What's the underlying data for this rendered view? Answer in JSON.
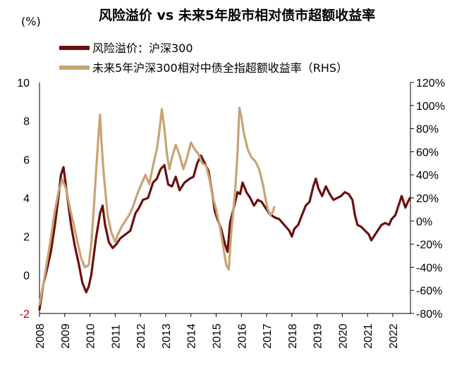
{
  "chart_data": {
    "type": "line",
    "title": "风险溢价 vs 未来5年股市相对债市超额收益率",
    "left_axis_unit": "(%)",
    "ylim_left": [
      -2,
      10
    ],
    "ylim_right": [
      -80,
      120
    ],
    "left_ticks": [
      "10",
      "8",
      "6",
      "4",
      "2",
      "0",
      "-2"
    ],
    "right_ticks": [
      "120%",
      "100%",
      "80%",
      "60%",
      "40%",
      "20%",
      "0%",
      "-20%",
      "-40%",
      "-60%",
      "-80%"
    ],
    "x_ticks": [
      "2008",
      "2009",
      "2010",
      "2011",
      "2012",
      "2013",
      "2014",
      "2015",
      "2016",
      "2017",
      "2018",
      "2019",
      "2020",
      "2021",
      "2022"
    ],
    "xlim": [
      2008.0,
      2022.7
    ],
    "series": [
      {
        "name": "风险溢价：沪深300",
        "axis": "left",
        "color": "#6b0f0f",
        "points": [
          [
            2008.0,
            -1.8
          ],
          [
            2008.15,
            -0.5
          ],
          [
            2008.3,
            0.3
          ],
          [
            2008.45,
            1.2
          ],
          [
            2008.6,
            2.5
          ],
          [
            2008.75,
            4.0
          ],
          [
            2008.85,
            5.2
          ],
          [
            2008.95,
            5.6
          ],
          [
            2009.05,
            4.6
          ],
          [
            2009.15,
            3.6
          ],
          [
            2009.25,
            2.6
          ],
          [
            2009.4,
            1.5
          ],
          [
            2009.55,
            0.6
          ],
          [
            2009.7,
            -0.4
          ],
          [
            2009.85,
            -0.9
          ],
          [
            2009.95,
            -0.6
          ],
          [
            2010.05,
            0.0
          ],
          [
            2010.15,
            1.0
          ],
          [
            2010.25,
            2.0
          ],
          [
            2010.4,
            3.2
          ],
          [
            2010.5,
            3.6
          ],
          [
            2010.6,
            2.6
          ],
          [
            2010.75,
            1.7
          ],
          [
            2010.9,
            1.4
          ],
          [
            2011.05,
            1.6
          ],
          [
            2011.2,
            1.9
          ],
          [
            2011.4,
            2.1
          ],
          [
            2011.6,
            2.3
          ],
          [
            2011.8,
            3.2
          ],
          [
            2011.95,
            3.5
          ],
          [
            2012.1,
            3.9
          ],
          [
            2012.3,
            4.0
          ],
          [
            2012.5,
            4.8
          ],
          [
            2012.65,
            5.0
          ],
          [
            2012.8,
            5.5
          ],
          [
            2012.95,
            5.7
          ],
          [
            2013.1,
            4.7
          ],
          [
            2013.25,
            4.6
          ],
          [
            2013.4,
            5.1
          ],
          [
            2013.55,
            4.4
          ],
          [
            2013.75,
            4.8
          ],
          [
            2013.95,
            5.0
          ],
          [
            2014.1,
            5.1
          ],
          [
            2014.25,
            5.8
          ],
          [
            2014.4,
            6.2
          ],
          [
            2014.55,
            5.8
          ],
          [
            2014.7,
            5.4
          ],
          [
            2014.85,
            4.2
          ],
          [
            2014.95,
            3.3
          ],
          [
            2015.05,
            2.9
          ],
          [
            2015.2,
            2.4
          ],
          [
            2015.35,
            1.6
          ],
          [
            2015.45,
            1.2
          ],
          [
            2015.55,
            2.7
          ],
          [
            2015.7,
            3.5
          ],
          [
            2015.85,
            4.3
          ],
          [
            2015.95,
            4.2
          ],
          [
            2016.05,
            4.8
          ],
          [
            2016.2,
            4.3
          ],
          [
            2016.35,
            4.0
          ],
          [
            2016.5,
            3.6
          ],
          [
            2016.65,
            3.9
          ],
          [
            2016.8,
            3.8
          ],
          [
            2016.95,
            3.5
          ],
          [
            2017.1,
            3.2
          ],
          [
            2017.3,
            3.0
          ],
          [
            2017.5,
            2.9
          ],
          [
            2017.7,
            2.6
          ],
          [
            2017.9,
            2.3
          ],
          [
            2018.0,
            2.0
          ],
          [
            2018.1,
            2.4
          ],
          [
            2018.25,
            2.6
          ],
          [
            2018.4,
            3.1
          ],
          [
            2018.55,
            3.6
          ],
          [
            2018.7,
            3.8
          ],
          [
            2018.85,
            4.6
          ],
          [
            2018.95,
            5.0
          ],
          [
            2019.05,
            4.5
          ],
          [
            2019.2,
            4.1
          ],
          [
            2019.35,
            4.6
          ],
          [
            2019.5,
            4.2
          ],
          [
            2019.65,
            3.9
          ],
          [
            2019.8,
            4.0
          ],
          [
            2019.95,
            4.1
          ],
          [
            2020.1,
            4.3
          ],
          [
            2020.25,
            4.2
          ],
          [
            2020.4,
            3.9
          ],
          [
            2020.5,
            3.1
          ],
          [
            2020.6,
            2.6
          ],
          [
            2020.75,
            2.5
          ],
          [
            2020.9,
            2.3
          ],
          [
            2021.05,
            2.1
          ],
          [
            2021.15,
            1.8
          ],
          [
            2021.3,
            2.1
          ],
          [
            2021.45,
            2.4
          ],
          [
            2021.55,
            2.6
          ],
          [
            2021.7,
            2.7
          ],
          [
            2021.85,
            2.6
          ],
          [
            2021.95,
            2.9
          ],
          [
            2022.1,
            3.1
          ],
          [
            2022.25,
            3.7
          ],
          [
            2022.35,
            4.1
          ],
          [
            2022.5,
            3.5
          ],
          [
            2022.6,
            3.8
          ],
          [
            2022.68,
            4.0
          ]
        ]
      },
      {
        "name": "未来5年沪深300相对中债全指超额收益率（RHS）",
        "axis": "right",
        "color": "#c8a373",
        "points": [
          [
            2008.0,
            -72
          ],
          [
            2008.15,
            -55
          ],
          [
            2008.3,
            -35
          ],
          [
            2008.45,
            -15
          ],
          [
            2008.6,
            8
          ],
          [
            2008.75,
            25
          ],
          [
            2008.9,
            36
          ],
          [
            2009.05,
            28
          ],
          [
            2009.2,
            12
          ],
          [
            2009.35,
            -2
          ],
          [
            2009.5,
            -18
          ],
          [
            2009.65,
            -32
          ],
          [
            2009.8,
            -40
          ],
          [
            2009.95,
            -38
          ],
          [
            2010.05,
            -20
          ],
          [
            2010.15,
            10
          ],
          [
            2010.25,
            45
          ],
          [
            2010.35,
            78
          ],
          [
            2010.4,
            92
          ],
          [
            2010.45,
            70
          ],
          [
            2010.55,
            40
          ],
          [
            2010.7,
            5
          ],
          [
            2010.85,
            -10
          ],
          [
            2011.0,
            -18
          ],
          [
            2011.1,
            -12
          ],
          [
            2011.25,
            -5
          ],
          [
            2011.4,
            0
          ],
          [
            2011.55,
            5
          ],
          [
            2011.7,
            12
          ],
          [
            2011.85,
            22
          ],
          [
            2012.0,
            30
          ],
          [
            2012.2,
            40
          ],
          [
            2012.35,
            32
          ],
          [
            2012.5,
            48
          ],
          [
            2012.65,
            62
          ],
          [
            2012.75,
            78
          ],
          [
            2012.85,
            97
          ],
          [
            2012.95,
            80
          ],
          [
            2013.05,
            58
          ],
          [
            2013.15,
            45
          ],
          [
            2013.25,
            55
          ],
          [
            2013.4,
            66
          ],
          [
            2013.55,
            57
          ],
          [
            2013.7,
            45
          ],
          [
            2013.85,
            55
          ],
          [
            2014.0,
            68
          ],
          [
            2014.15,
            62
          ],
          [
            2014.3,
            58
          ],
          [
            2014.45,
            50
          ],
          [
            2014.6,
            48
          ],
          [
            2014.75,
            35
          ],
          [
            2014.85,
            22
          ],
          [
            2015.0,
            10
          ],
          [
            2015.15,
            -5
          ],
          [
            2015.3,
            -25
          ],
          [
            2015.4,
            -38
          ],
          [
            2015.5,
            -42
          ],
          [
            2015.6,
            -10
          ],
          [
            2015.75,
            25
          ],
          [
            2015.85,
            60
          ],
          [
            2015.92,
            98
          ],
          [
            2016.0,
            90
          ],
          [
            2016.1,
            76
          ],
          [
            2016.25,
            62
          ],
          [
            2016.4,
            55
          ],
          [
            2016.55,
            52
          ],
          [
            2016.7,
            45
          ],
          [
            2016.85,
            32
          ],
          [
            2016.95,
            20
          ],
          [
            2017.05,
            10
          ],
          [
            2017.15,
            5
          ],
          [
            2017.25,
            8
          ],
          [
            2017.3,
            12
          ]
        ]
      }
    ]
  }
}
